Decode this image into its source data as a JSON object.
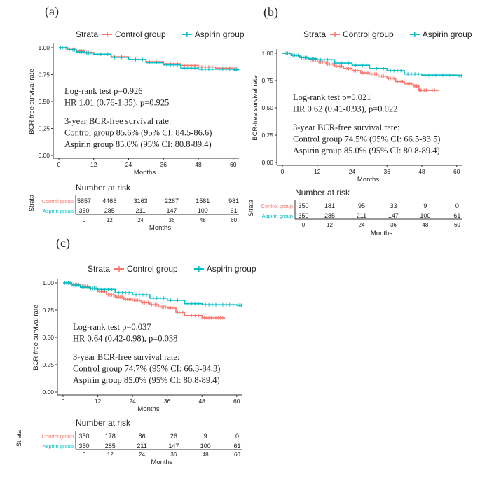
{
  "colors": {
    "control": "#F8766D",
    "aspirin": "#00BFC4"
  },
  "chart_data": [
    {
      "type": "line",
      "panel_label": "(a)",
      "legend_title": "Strata",
      "legend": [
        "Control group",
        "Aspirin group"
      ],
      "xlabel": "Months",
      "ylabel": "BCR-free survival rate",
      "xlim": [
        0,
        62
      ],
      "ylim": [
        0,
        1
      ],
      "x_ticks": [
        "0",
        "12",
        "24",
        "36",
        "48",
        "60"
      ],
      "y_ticks": [
        "0.00",
        "0.25",
        "0.50",
        "0.75",
        "1.00"
      ],
      "series": [
        {
          "name": "Control group",
          "x": [
            0,
            3,
            6,
            9,
            12,
            18,
            24,
            30,
            36,
            42,
            48,
            54,
            60,
            62
          ],
          "y": [
            1.0,
            0.985,
            0.97,
            0.955,
            0.94,
            0.915,
            0.89,
            0.87,
            0.85,
            0.835,
            0.82,
            0.81,
            0.8,
            0.795
          ]
        },
        {
          "name": "Aspirin group",
          "x": [
            0,
            3,
            6,
            9,
            12,
            18,
            24,
            30,
            36,
            42,
            48,
            54,
            60,
            62
          ],
          "y": [
            1.0,
            0.98,
            0.96,
            0.95,
            0.94,
            0.91,
            0.89,
            0.86,
            0.84,
            0.81,
            0.8,
            0.8,
            0.795,
            0.795
          ]
        }
      ],
      "annotation_lines": [
        "Log-rank test p=0.926",
        "HR 1.01 (0.76-1.35), p=0.925",
        "3-year BCR-free survival rate:",
        "Control group 85.6% (95% CI: 84.5-86.6)",
        "Aspirin group 85.0% (95% CI: 80.8-89.4)"
      ],
      "risk_table": {
        "title": "Number at risk",
        "strata_label": "Strata",
        "xlabel": "Months",
        "x_ticks": [
          "0",
          "12",
          "24",
          "36",
          "48",
          "60"
        ],
        "rows": [
          {
            "name": "Control group",
            "values": [
              "5857",
              "4466",
              "3163",
              "2267",
              "1581",
              "981"
            ]
          },
          {
            "name": "Aspirin group",
            "values": [
              "350",
              "285",
              "211",
              "147",
              "100",
              "61"
            ]
          }
        ]
      }
    },
    {
      "type": "line",
      "panel_label": "(b)",
      "legend_title": "Strata",
      "legend": [
        "Control group",
        "Aspirin group"
      ],
      "xlabel": "Months",
      "ylabel": "BCR-free survival rate",
      "xlim": [
        0,
        62
      ],
      "ylim": [
        0,
        1
      ],
      "x_ticks": [
        "0",
        "12",
        "24",
        "36",
        "48",
        "60"
      ],
      "y_ticks": [
        "0.00",
        "0.25",
        "0.50",
        "0.75",
        "1.00"
      ],
      "series": [
        {
          "name": "Control group",
          "x": [
            0,
            3,
            6,
            9,
            12,
            15,
            18,
            21,
            24,
            27,
            30,
            33,
            36,
            39,
            42,
            45,
            47,
            48,
            50,
            54
          ],
          "y": [
            1.0,
            0.98,
            0.96,
            0.94,
            0.92,
            0.9,
            0.88,
            0.86,
            0.84,
            0.82,
            0.81,
            0.79,
            0.77,
            0.74,
            0.72,
            0.7,
            0.66,
            0.66,
            0.66,
            0.66
          ]
        },
        {
          "name": "Aspirin group",
          "x": [
            0,
            3,
            6,
            9,
            12,
            18,
            24,
            30,
            36,
            42,
            48,
            54,
            60,
            62
          ],
          "y": [
            1.0,
            0.98,
            0.96,
            0.95,
            0.94,
            0.91,
            0.89,
            0.86,
            0.84,
            0.81,
            0.8,
            0.8,
            0.795,
            0.795
          ]
        }
      ],
      "annotation_lines": [
        "Log-rank test p=0.021",
        "HR 0.62 (0.41-0.93), p=0.022",
        "3-year BCR-free survival rate:",
        "Control group 74.5% (95% CI: 66.5-83.5)",
        "Aspirin group 85.0% (95% CI: 80.8-89.4)"
      ],
      "risk_table": {
        "title": "Number at risk",
        "strata_label": "Strata",
        "xlabel": "Months",
        "x_ticks": [
          "0",
          "12",
          "24",
          "36",
          "48",
          "60"
        ],
        "rows": [
          {
            "name": "Control group",
            "values": [
              "350",
              "181",
              "95",
              "33",
              "9",
              "0"
            ]
          },
          {
            "name": "Aspirin group",
            "values": [
              "350",
              "285",
              "211",
              "147",
              "100",
              "61"
            ]
          }
        ]
      }
    },
    {
      "type": "line",
      "panel_label": "(c)",
      "legend_title": "Strata",
      "legend": [
        "Control group",
        "Aspirin group"
      ],
      "xlabel": "Months",
      "ylabel": "BCR-free survival rate",
      "xlim": [
        0,
        62
      ],
      "ylim": [
        0,
        1
      ],
      "x_ticks": [
        "0",
        "12",
        "24",
        "36",
        "48",
        "60"
      ],
      "y_ticks": [
        "0.00",
        "0.25",
        "0.50",
        "0.75",
        "1.00"
      ],
      "series": [
        {
          "name": "Control group",
          "x": [
            0,
            3,
            6,
            9,
            12,
            15,
            18,
            21,
            24,
            27,
            30,
            33,
            36,
            39,
            42,
            48,
            52,
            56
          ],
          "y": [
            1.0,
            0.985,
            0.97,
            0.95,
            0.92,
            0.89,
            0.87,
            0.85,
            0.84,
            0.82,
            0.8,
            0.78,
            0.77,
            0.73,
            0.7,
            0.68,
            0.68,
            0.68
          ]
        },
        {
          "name": "Aspirin group",
          "x": [
            0,
            3,
            6,
            9,
            12,
            18,
            24,
            30,
            36,
            42,
            48,
            54,
            60,
            62
          ],
          "y": [
            1.0,
            0.98,
            0.96,
            0.95,
            0.94,
            0.91,
            0.89,
            0.86,
            0.84,
            0.81,
            0.8,
            0.8,
            0.795,
            0.795
          ]
        }
      ],
      "annotation_lines": [
        "Log-rank test p=0.037",
        "HR 0.64 (0.42-0.98), p=0.038",
        "3-year BCR-free survival rate:",
        "Control group 74.7% (95% CI: 66.3-84.3)",
        "Aspirin group 85.0% (95% CI: 80.8-89.4)"
      ],
      "risk_table": {
        "title": "Number at risk",
        "strata_label": "Strata",
        "xlabel": "Months",
        "x_ticks": [
          "0",
          "12",
          "24",
          "36",
          "48",
          "60"
        ],
        "rows": [
          {
            "name": "Control group",
            "values": [
              "350",
              "178",
              "86",
              "26",
              "9",
              "0"
            ]
          },
          {
            "name": "Aspirin group",
            "values": [
              "350",
              "285",
              "211",
              "147",
              "100",
              "61"
            ]
          }
        ]
      }
    }
  ]
}
